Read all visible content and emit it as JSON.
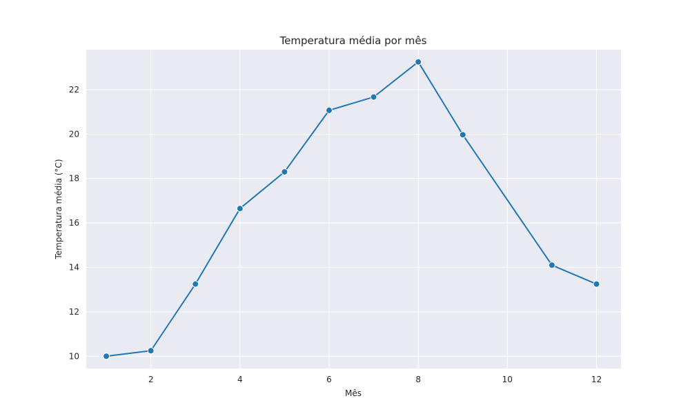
{
  "chart_data": {
    "type": "line",
    "title": "Temperatura média por mês",
    "xlabel": "Mês",
    "ylabel": "Temperatura média (°C)",
    "x": [
      1,
      2,
      3,
      4,
      5,
      6,
      7,
      8,
      9,
      11,
      12
    ],
    "series": [
      {
        "values": [
          10.0,
          10.25,
          13.25,
          16.65,
          18.3,
          21.07,
          21.67,
          23.25,
          19.97,
          14.1,
          13.25
        ]
      }
    ],
    "xlim": [
      0.55,
      12.55
    ],
    "ylim": [
      9.45,
      23.8
    ],
    "xticks": [
      2,
      4,
      6,
      8,
      10,
      12
    ],
    "yticks": [
      10,
      12,
      14,
      16,
      18,
      20,
      22
    ],
    "grid": true,
    "colors": {
      "line": "#1f77b4",
      "background": "#eaeaf2",
      "grid": "#ffffff"
    }
  }
}
